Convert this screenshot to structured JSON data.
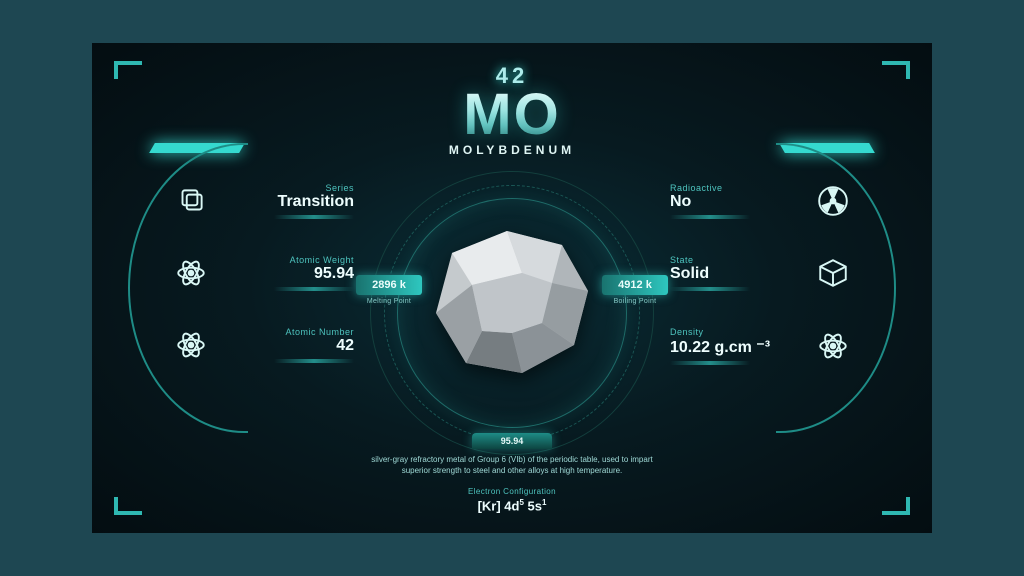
{
  "colors": {
    "page_bg": "#1e4752",
    "panel_center": "#0a2d36",
    "panel_mid": "#071a20",
    "panel_edge": "#040d11",
    "accent": "#35d9cf",
    "accent_dim": "#1e8c86",
    "text_bright": "#eefefe",
    "text_label": "#4ec4bf",
    "text_muted": "#9fd9d6"
  },
  "header": {
    "atomic_number": "42",
    "symbol": "MO",
    "name": "MOLYBDENUM"
  },
  "melting": {
    "value": "2896 k",
    "label": "Melting Point"
  },
  "boiling": {
    "value": "4912 k",
    "label": "Boiling Point"
  },
  "left_props": [
    {
      "label": "Series",
      "value": "Transition",
      "icon": "layers"
    },
    {
      "label": "Atomic Weight",
      "value": "95.94",
      "icon": "atom"
    },
    {
      "label": "Atomic Number",
      "value": "42",
      "icon": "atom"
    }
  ],
  "right_props": [
    {
      "label": "Radioactive",
      "value": "No",
      "icon": "radiation"
    },
    {
      "label": "State",
      "value": "Solid",
      "icon": "cube"
    },
    {
      "label": "Density",
      "value": "10.22 g.cm ⁻³",
      "icon": "atom"
    }
  ],
  "footer": {
    "caption": "95.94",
    "description": "silver-gray refractory metal of Group 6 (VIb) of the periodic table, used to impart superior strength to steel and other alloys at high temperature.",
    "econf_label": "Electron Configuration",
    "econf_value_html": "[Kr] 4d<sup>5</sup> 5s<sup>1</sup>"
  },
  "rock": {
    "fill_light": "#e8ebed",
    "fill_mid": "#c5cacd",
    "fill_dark": "#969da1",
    "fill_darker": "#767d81"
  }
}
